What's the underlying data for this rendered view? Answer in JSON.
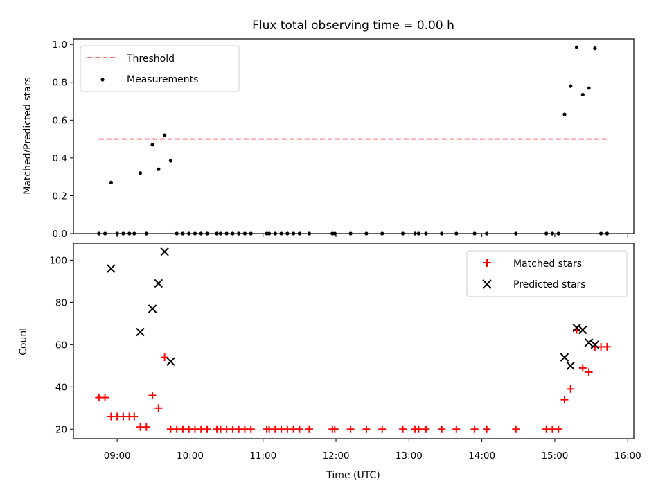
{
  "chart_data": [
    {
      "type": "scatter",
      "title": "Flux total observing time = 0.00 h",
      "xlabel": "",
      "ylabel": "Matched/Predicted stars",
      "xlim": [
        "08:24",
        "16:05"
      ],
      "ylim": [
        0,
        1.03
      ],
      "yticks": [
        "0.0",
        "0.2",
        "0.4",
        "0.6",
        "0.8",
        "1.0"
      ],
      "legend_position": "top-left",
      "grid": false,
      "threshold": {
        "name": "Threshold",
        "value": 0.5,
        "x_start": "08:45",
        "x_end": "15:43",
        "color": "#ff7777"
      },
      "measurements": {
        "name": "Measurements",
        "color": "#000000",
        "points": [
          {
            "x": "08:45",
            "y": 0
          },
          {
            "x": "08:50",
            "y": 0
          },
          {
            "x": "08:55",
            "y": 0.27
          },
          {
            "x": "09:00",
            "y": 0
          },
          {
            "x": "09:05",
            "y": 0
          },
          {
            "x": "09:10",
            "y": 0
          },
          {
            "x": "09:14",
            "y": 0
          },
          {
            "x": "09:19",
            "y": 0.32
          },
          {
            "x": "09:24",
            "y": 0
          },
          {
            "x": "09:29",
            "y": 0.47
          },
          {
            "x": "09:34",
            "y": 0.34
          },
          {
            "x": "09:39",
            "y": 0.52
          },
          {
            "x": "09:44",
            "y": 0.385
          },
          {
            "x": "09:49",
            "y": 0
          },
          {
            "x": "09:54",
            "y": 0
          },
          {
            "x": "09:59",
            "y": 0
          },
          {
            "x": "10:04",
            "y": 0
          },
          {
            "x": "10:09",
            "y": 0
          },
          {
            "x": "10:14",
            "y": 0
          },
          {
            "x": "10:22",
            "y": 0
          },
          {
            "x": "10:25",
            "y": 0
          },
          {
            "x": "10:30",
            "y": 0
          },
          {
            "x": "10:35",
            "y": 0
          },
          {
            "x": "10:40",
            "y": 0
          },
          {
            "x": "10:45",
            "y": 0
          },
          {
            "x": "10:50",
            "y": 0
          },
          {
            "x": "11:03",
            "y": 0
          },
          {
            "x": "11:05",
            "y": 0
          },
          {
            "x": "11:10",
            "y": 0
          },
          {
            "x": "11:15",
            "y": 0
          },
          {
            "x": "11:20",
            "y": 0
          },
          {
            "x": "11:25",
            "y": 0
          },
          {
            "x": "11:30",
            "y": 0
          },
          {
            "x": "11:38",
            "y": 0
          },
          {
            "x": "11:57",
            "y": 0
          },
          {
            "x": "11:59",
            "y": 0
          },
          {
            "x": "12:12",
            "y": 0
          },
          {
            "x": "12:25",
            "y": 0
          },
          {
            "x": "12:38",
            "y": 0
          },
          {
            "x": "12:55",
            "y": 0
          },
          {
            "x": "13:05",
            "y": 0
          },
          {
            "x": "13:08",
            "y": 0
          },
          {
            "x": "13:14",
            "y": 0
          },
          {
            "x": "13:27",
            "y": 0
          },
          {
            "x": "13:39",
            "y": 0
          },
          {
            "x": "13:54",
            "y": 0
          },
          {
            "x": "14:04",
            "y": 0
          },
          {
            "x": "14:28",
            "y": 0
          },
          {
            "x": "14:53",
            "y": 0
          },
          {
            "x": "14:58",
            "y": 0
          },
          {
            "x": "15:03",
            "y": 0
          },
          {
            "x": "15:08",
            "y": 0.63
          },
          {
            "x": "15:13",
            "y": 0.78
          },
          {
            "x": "15:18",
            "y": 0.985
          },
          {
            "x": "15:23",
            "y": 0.735
          },
          {
            "x": "15:28",
            "y": 0.77
          },
          {
            "x": "15:33",
            "y": 0.98
          },
          {
            "x": "15:38",
            "y": 0
          },
          {
            "x": "15:43",
            "y": 0
          }
        ]
      }
    },
    {
      "type": "scatter",
      "title": "",
      "xlabel": "Time (UTC)",
      "ylabel": "Count",
      "xlim": [
        "08:24",
        "16:05"
      ],
      "ylim": [
        15.5,
        108
      ],
      "yticks": [
        "20",
        "40",
        "60",
        "80",
        "100"
      ],
      "xticks": [
        "09:00",
        "10:00",
        "11:00",
        "12:00",
        "13:00",
        "14:00",
        "15:00",
        "16:00"
      ],
      "legend_position": "top-right",
      "grid": false,
      "series": [
        {
          "name": "Matched stars",
          "marker": "+",
          "color": "#ff0000",
          "points": [
            {
              "x": "08:45",
              "y": 35
            },
            {
              "x": "08:50",
              "y": 35
            },
            {
              "x": "08:55",
              "y": 26
            },
            {
              "x": "09:00",
              "y": 26
            },
            {
              "x": "09:05",
              "y": 26
            },
            {
              "x": "09:10",
              "y": 26
            },
            {
              "x": "09:14",
              "y": 26
            },
            {
              "x": "09:19",
              "y": 21
            },
            {
              "x": "09:24",
              "y": 21
            },
            {
              "x": "09:29",
              "y": 36
            },
            {
              "x": "09:34",
              "y": 30
            },
            {
              "x": "09:39",
              "y": 54
            },
            {
              "x": "09:44",
              "y": 20
            },
            {
              "x": "09:49",
              "y": 20
            },
            {
              "x": "09:54",
              "y": 20
            },
            {
              "x": "09:59",
              "y": 20
            },
            {
              "x": "10:04",
              "y": 20
            },
            {
              "x": "10:09",
              "y": 20
            },
            {
              "x": "10:14",
              "y": 20
            },
            {
              "x": "10:22",
              "y": 20
            },
            {
              "x": "10:25",
              "y": 20
            },
            {
              "x": "10:30",
              "y": 20
            },
            {
              "x": "10:35",
              "y": 20
            },
            {
              "x": "10:40",
              "y": 20
            },
            {
              "x": "10:45",
              "y": 20
            },
            {
              "x": "10:50",
              "y": 20
            },
            {
              "x": "11:03",
              "y": 20
            },
            {
              "x": "11:05",
              "y": 20
            },
            {
              "x": "11:10",
              "y": 20
            },
            {
              "x": "11:15",
              "y": 20
            },
            {
              "x": "11:20",
              "y": 20
            },
            {
              "x": "11:25",
              "y": 20
            },
            {
              "x": "11:30",
              "y": 20
            },
            {
              "x": "11:38",
              "y": 20
            },
            {
              "x": "11:57",
              "y": 20
            },
            {
              "x": "11:59",
              "y": 20
            },
            {
              "x": "12:12",
              "y": 20
            },
            {
              "x": "12:25",
              "y": 20
            },
            {
              "x": "12:38",
              "y": 20
            },
            {
              "x": "12:55",
              "y": 20
            },
            {
              "x": "13:05",
              "y": 20
            },
            {
              "x": "13:08",
              "y": 20
            },
            {
              "x": "13:14",
              "y": 20
            },
            {
              "x": "13:27",
              "y": 20
            },
            {
              "x": "13:39",
              "y": 20
            },
            {
              "x": "13:54",
              "y": 20
            },
            {
              "x": "14:04",
              "y": 20
            },
            {
              "x": "14:28",
              "y": 20
            },
            {
              "x": "14:53",
              "y": 20
            },
            {
              "x": "14:58",
              "y": 20
            },
            {
              "x": "15:03",
              "y": 20
            },
            {
              "x": "15:08",
              "y": 34
            },
            {
              "x": "15:13",
              "y": 39
            },
            {
              "x": "15:18",
              "y": 67
            },
            {
              "x": "15:23",
              "y": 49
            },
            {
              "x": "15:28",
              "y": 47
            },
            {
              "x": "15:33",
              "y": 59
            },
            {
              "x": "15:38",
              "y": 59
            },
            {
              "x": "15:43",
              "y": 59
            }
          ]
        },
        {
          "name": "Predicted stars",
          "marker": "x",
          "color": "#000000",
          "points": [
            {
              "x": "08:55",
              "y": 96
            },
            {
              "x": "09:19",
              "y": 66
            },
            {
              "x": "09:29",
              "y": 77
            },
            {
              "x": "09:34",
              "y": 89
            },
            {
              "x": "09:39",
              "y": 104
            },
            {
              "x": "09:44",
              "y": 52
            },
            {
              "x": "15:08",
              "y": 54
            },
            {
              "x": "15:13",
              "y": 50
            },
            {
              "x": "15:18",
              "y": 68
            },
            {
              "x": "15:23",
              "y": 67
            },
            {
              "x": "15:28",
              "y": 61
            },
            {
              "x": "15:33",
              "y": 60
            }
          ]
        }
      ]
    }
  ]
}
